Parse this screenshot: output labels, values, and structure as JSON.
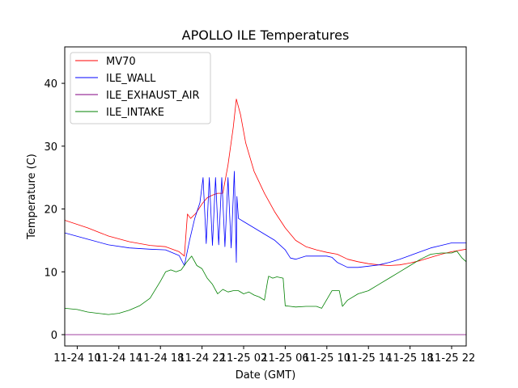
{
  "chart_data": {
    "type": "line",
    "title": "APOLLO ILE Temperatures",
    "xlabel": "Date (GMT)",
    "ylabel": "Temperature (C)",
    "x_unit": "hours since 11-24 10:00 GMT",
    "xlim": [
      -1.2,
      37.4
    ],
    "ylim": [
      -1.8,
      45.8
    ],
    "grid": false,
    "legend_position": "top-left",
    "x_ticks": [
      {
        "value": 0,
        "label": "11-24 10"
      },
      {
        "value": 4,
        "label": "11-24 14"
      },
      {
        "value": 8,
        "label": "11-24 18"
      },
      {
        "value": 12,
        "label": "11-24 22"
      },
      {
        "value": 16,
        "label": "11-25 02"
      },
      {
        "value": 20,
        "label": "11-25 06"
      },
      {
        "value": 24,
        "label": "11-25 10"
      },
      {
        "value": 28,
        "label": "11-25 14"
      },
      {
        "value": 32,
        "label": "11-25 18"
      },
      {
        "value": 36,
        "label": "11-25 22"
      }
    ],
    "y_ticks": [
      {
        "value": 0,
        "label": "0"
      },
      {
        "value": 10,
        "label": "10"
      },
      {
        "value": 20,
        "label": "20"
      },
      {
        "value": 30,
        "label": "30"
      },
      {
        "value": 40,
        "label": "40"
      }
    ],
    "series": [
      {
        "name": "MV70",
        "color": "#ff0000",
        "x": [
          -1.2,
          1,
          3,
          5,
          7,
          8.5,
          9.8,
          10.3,
          10.6,
          10.9,
          11.4,
          12,
          12.5,
          13,
          13.5,
          14,
          14.5,
          15,
          15.3,
          15.7,
          16.2,
          17,
          18,
          19,
          20,
          21,
          22,
          23,
          24,
          25,
          26,
          27,
          28,
          29,
          30,
          31,
          32,
          33,
          34,
          35,
          36,
          37.4
        ],
        "values": [
          18.2,
          17,
          15.7,
          14.8,
          14.2,
          14,
          13.2,
          12.5,
          19.2,
          18.5,
          19.3,
          20.8,
          21.8,
          22.2,
          22.5,
          22.5,
          27,
          33,
          37.5,
          35,
          30.5,
          26,
          22.5,
          19.5,
          17,
          15,
          14,
          13.5,
          13.1,
          12.8,
          12,
          11.6,
          11.3,
          11.1,
          11,
          11.1,
          11.4,
          11.8,
          12.3,
          12.8,
          13.2,
          13.6
        ]
      },
      {
        "name": "ILE_WALL",
        "color": "#0000ff",
        "x": [
          -1.2,
          1,
          3,
          5,
          7,
          8.5,
          9.8,
          10.3,
          10.8,
          11.3,
          11.8,
          12.1,
          12.4,
          12.7,
          13,
          13.3,
          13.6,
          13.9,
          14.2,
          14.5,
          14.8,
          15.1,
          15.3,
          15.35,
          15.5,
          16,
          17,
          18,
          19,
          20,
          20.5,
          21,
          22,
          23,
          24,
          24.5,
          25,
          26,
          27,
          28,
          29,
          30,
          31,
          32,
          33,
          34,
          35,
          36,
          37.4
        ],
        "values": [
          16.2,
          15.2,
          14.3,
          13.8,
          13.6,
          13.5,
          12.6,
          11,
          15,
          18.5,
          21,
          25,
          14.5,
          25,
          14.2,
          25,
          14.3,
          25,
          14,
          25,
          13.8,
          26,
          11.5,
          22,
          18.5,
          18,
          17,
          16,
          15,
          13.5,
          12.2,
          12,
          12.5,
          12.5,
          12.5,
          12.3,
          11.5,
          10.7,
          10.7,
          10.9,
          11.1,
          11.5,
          12,
          12.6,
          13.2,
          13.8,
          14.2,
          14.6,
          14.6
        ]
      },
      {
        "name": "ILE_EXHAUST_AIR",
        "color": "#800080",
        "x": [
          -1.2,
          37.4
        ],
        "values": [
          0,
          0
        ]
      },
      {
        "name": "ILE_INTAKE",
        "color": "#008000",
        "x": [
          -1.2,
          0,
          1,
          2,
          3,
          4,
          5,
          6,
          7,
          8,
          8.5,
          9,
          9.5,
          10,
          10.5,
          11,
          11.5,
          12,
          12.5,
          13,
          13.5,
          14,
          14.5,
          15,
          15.5,
          16,
          16.5,
          17,
          17.5,
          18,
          18.3,
          18.4,
          18.8,
          19.2,
          19.8,
          20,
          20.5,
          21,
          22,
          23,
          23.5,
          24.5,
          24.7,
          25.2,
          25.5,
          26,
          27,
          28,
          29,
          30,
          31,
          32,
          33,
          34,
          35,
          36,
          36.5,
          37,
          37.4
        ],
        "values": [
          4.2,
          4,
          3.6,
          3.4,
          3.2,
          3.4,
          3.9,
          4.6,
          5.8,
          8.5,
          10,
          10.3,
          10,
          10.3,
          11.5,
          12.5,
          11,
          10.5,
          9,
          8,
          6.5,
          7.2,
          6.8,
          7,
          7,
          6.5,
          6.8,
          6.3,
          6,
          5.5,
          8.5,
          9.3,
          9,
          9.2,
          9,
          4.6,
          4.5,
          4.4,
          4.5,
          4.5,
          4.2,
          7,
          7,
          7,
          4.5,
          5.5,
          6.5,
          7,
          8,
          9,
          10,
          11,
          12,
          12.8,
          13,
          13,
          13.3,
          12.2,
          11.6
        ]
      }
    ]
  }
}
